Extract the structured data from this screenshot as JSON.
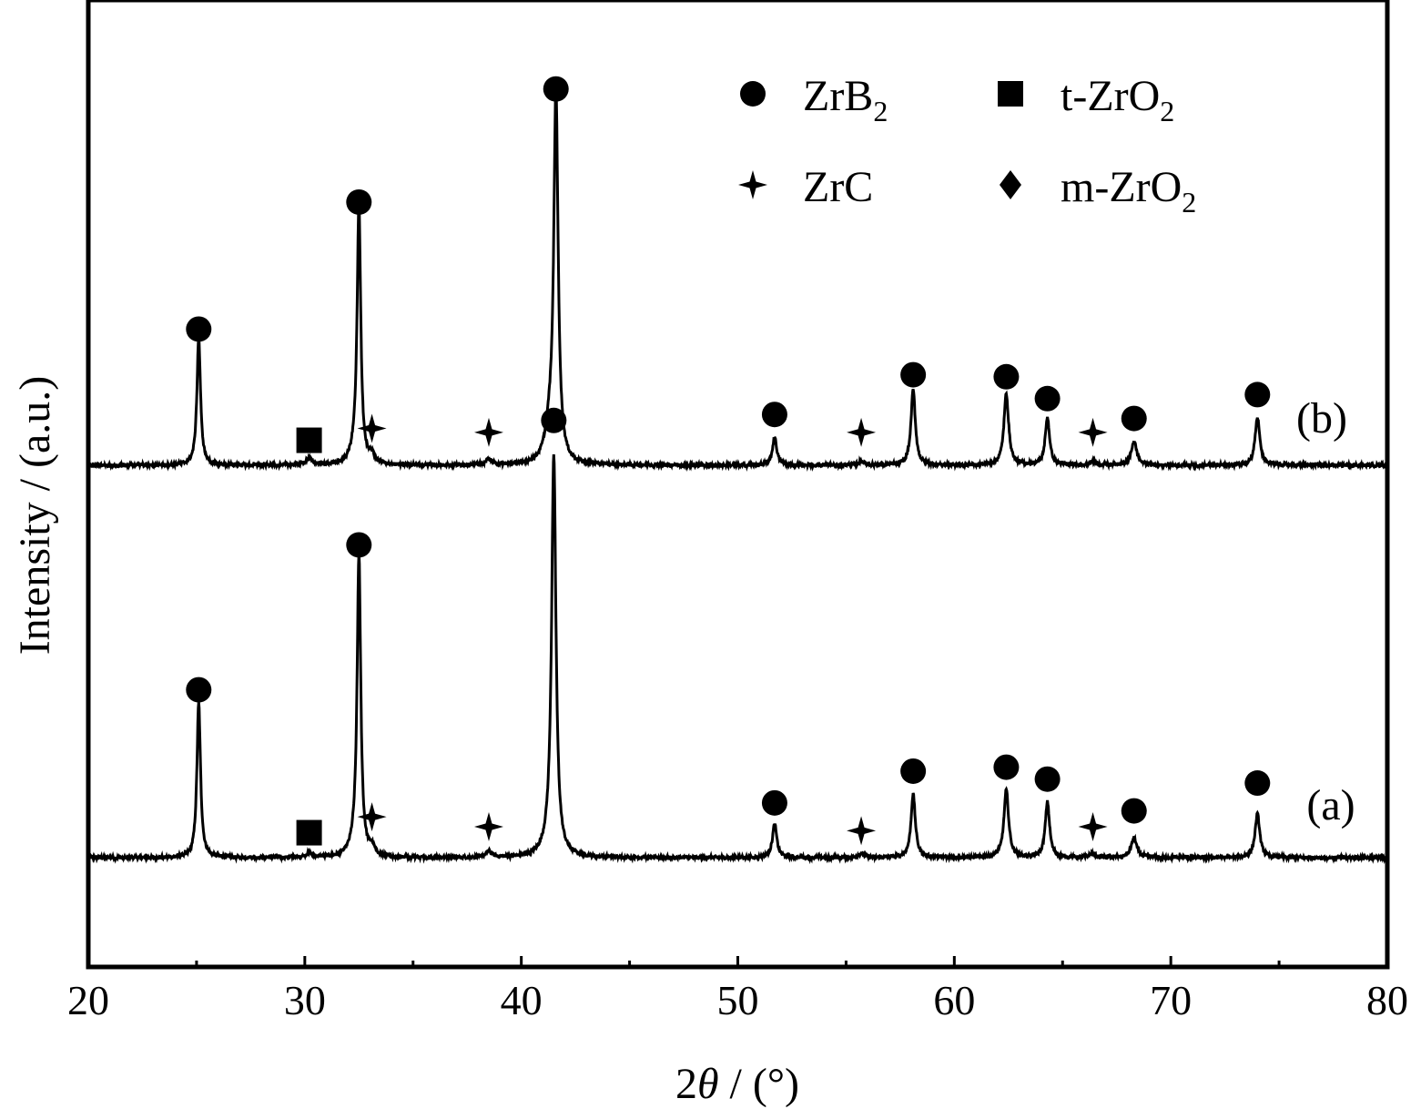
{
  "chart_data": {
    "type": "line",
    "title": "",
    "xlabel_prefix": "2",
    "xlabel_symbol": "θ",
    "xlabel_suffix": " / (°)",
    "ylabel": "Intensity / (a.u.)",
    "xlim": [
      20,
      80
    ],
    "y_ticks_shown": false,
    "grid": false,
    "x_ticks": [
      20,
      30,
      40,
      50,
      60,
      70,
      80
    ],
    "x_ticks_minor": [
      25,
      35,
      45,
      55,
      65,
      75
    ],
    "legend": {
      "placement": "top-right",
      "entries": [
        {
          "marker": "circle",
          "label": "ZrB",
          "sub": "2"
        },
        {
          "marker": "square",
          "label": "t-ZrO",
          "sub": "2"
        },
        {
          "marker": "star",
          "label": "ZrC",
          "sub": ""
        },
        {
          "marker": "diamond",
          "label": "m-ZrO",
          "sub": "2"
        }
      ]
    },
    "series": [
      {
        "name": "(a)",
        "baseline": 0,
        "peaks": [
          {
            "x": 25.1,
            "h": 78,
            "w": 0.1,
            "phase": "ZrB2"
          },
          {
            "x": 30.2,
            "h": 2,
            "w": 0.2,
            "phase": "t-ZrO2"
          },
          {
            "x": 32.5,
            "h": 150,
            "w": 0.1,
            "phase": "ZrB2"
          },
          {
            "x": 32.3,
            "h": 5,
            "w": 0.25,
            "phase": ""
          },
          {
            "x": 33.1,
            "h": 4,
            "w": 0.15,
            "phase": "ZrC"
          },
          {
            "x": 38.5,
            "h": 3,
            "w": 0.15,
            "phase": "ZrC"
          },
          {
            "x": 41.5,
            "h": 200,
            "w": 0.12,
            "phase": "ZrB2"
          },
          {
            "x": 41.3,
            "h": 5,
            "w": 0.3,
            "phase": ""
          },
          {
            "x": 51.7,
            "h": 17,
            "w": 0.12,
            "phase": "ZrB2"
          },
          {
            "x": 55.7,
            "h": 2,
            "w": 0.15,
            "phase": "ZrC"
          },
          {
            "x": 58.1,
            "h": 32,
            "w": 0.12,
            "phase": "ZrB2"
          },
          {
            "x": 62.4,
            "h": 34,
            "w": 0.13,
            "phase": "ZrB2"
          },
          {
            "x": 64.3,
            "h": 28,
            "w": 0.12,
            "phase": "ZrB2"
          },
          {
            "x": 66.4,
            "h": 2,
            "w": 0.15,
            "phase": "ZrC"
          },
          {
            "x": 68.3,
            "h": 10,
            "w": 0.15,
            "phase": "ZrB2"
          },
          {
            "x": 74.0,
            "h": 22,
            "w": 0.13,
            "phase": "ZrB2"
          }
        ],
        "markers": [
          {
            "x": 25.1,
            "h": 80,
            "marker": "circle"
          },
          {
            "x": 30.2,
            "h": 8,
            "marker": "square"
          },
          {
            "x": 32.5,
            "h": 153,
            "marker": "circle"
          },
          {
            "x": 33.1,
            "h": 16,
            "marker": "star"
          },
          {
            "x": 38.5,
            "h": 11,
            "marker": "star"
          },
          {
            "x": 51.7,
            "h": 23,
            "marker": "circle"
          },
          {
            "x": 55.7,
            "h": 9,
            "marker": "star"
          },
          {
            "x": 58.1,
            "h": 39,
            "marker": "circle"
          },
          {
            "x": 62.4,
            "h": 41,
            "marker": "circle"
          },
          {
            "x": 64.3,
            "h": 35,
            "marker": "circle"
          },
          {
            "x": 66.4,
            "h": 11,
            "marker": "star"
          },
          {
            "x": 68.3,
            "h": 19,
            "marker": "circle"
          },
          {
            "x": 74.0,
            "h": 33,
            "marker": "circle"
          }
        ]
      },
      {
        "name": "(b)",
        "baseline": 180,
        "peaks": [
          {
            "x": 25.1,
            "h": 64,
            "w": 0.1,
            "phase": "ZrB2"
          },
          {
            "x": 30.2,
            "h": 3,
            "w": 0.2,
            "phase": "t-ZrO2"
          },
          {
            "x": 32.5,
            "h": 128,
            "w": 0.1,
            "phase": "ZrB2"
          },
          {
            "x": 32.3,
            "h": 5,
            "w": 0.25,
            "phase": ""
          },
          {
            "x": 33.1,
            "h": 4,
            "w": 0.15,
            "phase": "ZrC"
          },
          {
            "x": 38.5,
            "h": 3,
            "w": 0.15,
            "phase": "ZrC"
          },
          {
            "x": 41.6,
            "h": 185,
            "w": 0.12,
            "phase": "ZrB2"
          },
          {
            "x": 41.3,
            "h": 14,
            "w": 0.25,
            "phase": "m-ZrO2"
          },
          {
            "x": 51.7,
            "h": 14,
            "w": 0.12,
            "phase": "ZrB2"
          },
          {
            "x": 55.7,
            "h": 2,
            "w": 0.15,
            "phase": "ZrC"
          },
          {
            "x": 58.1,
            "h": 38,
            "w": 0.12,
            "phase": "ZrB2"
          },
          {
            "x": 62.4,
            "h": 36,
            "w": 0.13,
            "phase": "ZrB2"
          },
          {
            "x": 64.3,
            "h": 24,
            "w": 0.12,
            "phase": "ZrB2"
          },
          {
            "x": 66.4,
            "h": 2,
            "w": 0.15,
            "phase": "ZrC"
          },
          {
            "x": 68.3,
            "h": 12,
            "w": 0.15,
            "phase": "ZrB2"
          },
          {
            "x": 74.0,
            "h": 24,
            "w": 0.13,
            "phase": "ZrB2"
          }
        ],
        "markers": [
          {
            "x": 25.1,
            "h": 64,
            "marker": "circle"
          },
          {
            "x": 30.2,
            "h": 8,
            "marker": "square"
          },
          {
            "x": 32.5,
            "h": 128,
            "marker": "circle"
          },
          {
            "x": 33.1,
            "h": 14,
            "marker": "star"
          },
          {
            "x": 38.5,
            "h": 12,
            "marker": "star"
          },
          {
            "x": 41.6,
            "h": 185,
            "marker": "circle"
          },
          {
            "x": 41.5,
            "h": 18,
            "marker": "circle"
          },
          {
            "x": 51.7,
            "h": 21,
            "marker": "circle"
          },
          {
            "x": 55.7,
            "h": 12,
            "marker": "star"
          },
          {
            "x": 58.1,
            "h": 41,
            "marker": "circle"
          },
          {
            "x": 62.4,
            "h": 40,
            "marker": "circle"
          },
          {
            "x": 64.3,
            "h": 29,
            "marker": "circle"
          },
          {
            "x": 66.4,
            "h": 12,
            "marker": "star"
          },
          {
            "x": 68.3,
            "h": 19,
            "marker": "circle"
          },
          {
            "x": 74.0,
            "h": 31,
            "marker": "circle"
          }
        ]
      }
    ]
  }
}
